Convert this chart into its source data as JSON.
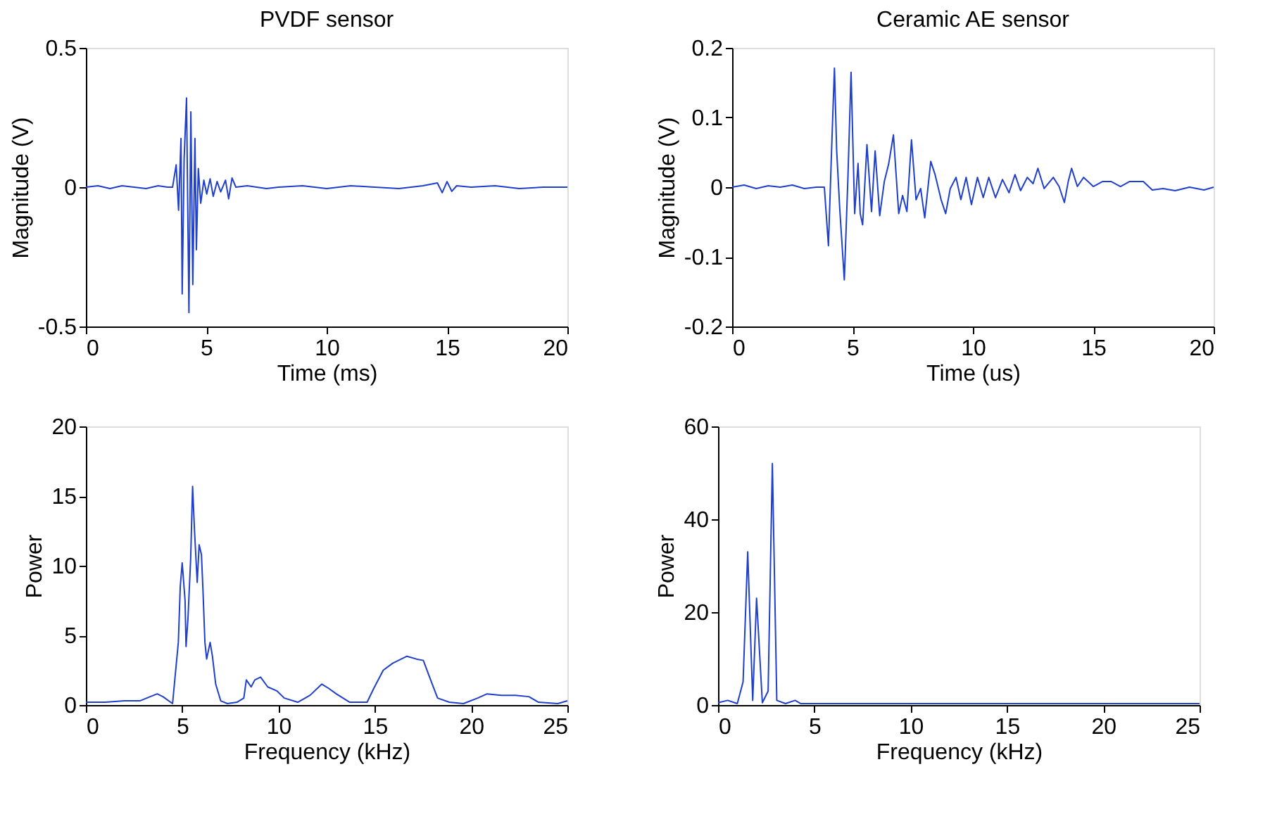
{
  "chart_data": [
    {
      "type": "line",
      "title": "PVDF sensor",
      "xlabel": "Time (ms)",
      "ylabel": "Magnitude (V)",
      "xlim": [
        0,
        20
      ],
      "ylim": [
        -0.5,
        0.5
      ],
      "xticks": [
        0,
        5,
        10,
        15,
        20
      ],
      "yticks": [
        -0.5,
        0,
        0.5
      ],
      "grid": false,
      "series": [
        {
          "color": "#1f3fcc",
          "x": [
            0,
            0.5,
            1,
            1.5,
            2,
            2.5,
            3,
            3.4,
            3.6,
            3.75,
            3.85,
            3.95,
            4.0,
            4.08,
            4.18,
            4.28,
            4.36,
            4.44,
            4.53,
            4.59,
            4.67,
            4.77,
            4.9,
            5.02,
            5.16,
            5.29,
            5.45,
            5.6,
            5.8,
            5.93,
            6.07,
            6.23,
            6.7,
            7.5,
            8,
            9,
            10,
            11,
            12,
            13,
            14,
            14.6,
            14.8,
            15,
            15.2,
            15.4,
            16,
            17,
            18,
            19,
            20
          ],
          "values": [
            0,
            0.005,
            -0.005,
            0.005,
            0,
            -0.005,
            0.005,
            0,
            0,
            0.08,
            -0.083,
            0.175,
            -0.383,
            0.1,
            0.32,
            -0.45,
            0.27,
            -0.35,
            0.175,
            -0.225,
            0.067,
            -0.058,
            0.025,
            -0.025,
            0.03,
            -0.033,
            0.02,
            -0.017,
            0.025,
            -0.042,
            0.033,
            0,
            0.005,
            -0.005,
            0,
            0.005,
            -0.005,
            0.005,
            0,
            -0.005,
            0.005,
            0.015,
            -0.02,
            0.02,
            -0.015,
            0.005,
            0,
            0.005,
            -0.005,
            0,
            0
          ]
        }
      ]
    },
    {
      "type": "line",
      "title": "Ceramic AE sensor",
      "xlabel": "Time (us)",
      "ylabel": "Magnitude (V)",
      "xlim": [
        0,
        20
      ],
      "ylim": [
        -0.2,
        0.2
      ],
      "xticks": [
        0,
        5,
        10,
        15,
        20
      ],
      "yticks": [
        -0.2,
        -0.1,
        0,
        0.1,
        0.2
      ],
      "grid": false,
      "series": [
        {
          "color": "#1f3fcc",
          "x": [
            0,
            0.5,
            1,
            1.5,
            2,
            2.5,
            3,
            3.5,
            3.83,
            4.0,
            4.15,
            4.25,
            4.34,
            4.47,
            4.66,
            4.81,
            4.94,
            5.09,
            5.23,
            5.32,
            5.42,
            5.6,
            5.79,
            5.94,
            6.13,
            6.32,
            6.5,
            6.7,
            6.92,
            7.08,
            7.26,
            7.45,
            7.64,
            7.83,
            8.0,
            8.25,
            8.43,
            8.68,
            8.87,
            9.06,
            9.3,
            9.5,
            9.72,
            9.94,
            10.19,
            10.43,
            10.66,
            10.94,
            11.23,
            11.5,
            11.75,
            11.98,
            12.26,
            12.5,
            12.7,
            12.96,
            13.34,
            13.58,
            13.8,
            13.96,
            14.1,
            14.34,
            14.6,
            15.0,
            15.38,
            15.75,
            16.13,
            16.5,
            17.08,
            17.45,
            17.9,
            18.4,
            19.0,
            19.6,
            20
          ],
          "values": [
            0,
            0.003,
            -0.002,
            0.002,
            0,
            0.003,
            -0.002,
            0,
            0,
            -0.084,
            0.073,
            0.171,
            0.054,
            -0.031,
            -0.133,
            0.014,
            0.165,
            -0.038,
            0.034,
            -0.038,
            -0.054,
            0.061,
            -0.035,
            0.052,
            -0.041,
            0.008,
            0.033,
            0.075,
            -0.038,
            -0.012,
            -0.035,
            0.068,
            -0.018,
            -0.002,
            -0.044,
            0.037,
            0.018,
            -0.018,
            -0.038,
            -0.002,
            0.014,
            -0.018,
            0.014,
            -0.025,
            0.014,
            -0.015,
            0.014,
            -0.015,
            0.011,
            -0.008,
            0.018,
            -0.005,
            0.014,
            0.005,
            0.027,
            -0.002,
            0.014,
            0.001,
            -0.022,
            0.008,
            0.027,
            0.001,
            0.014,
            0.001,
            0.008,
            0.008,
            0.001,
            0.008,
            0.008,
            -0.004,
            -0.002,
            -0.005,
            0,
            -0.004,
            0
          ]
        }
      ]
    },
    {
      "type": "line",
      "xlabel": "Frequency (kHz)",
      "ylabel": "Power",
      "xlim": [
        0,
        25
      ],
      "ylim": [
        0,
        20
      ],
      "xticks": [
        0,
        5,
        10,
        15,
        20,
        25
      ],
      "yticks": [
        0,
        5,
        10,
        15,
        20
      ],
      "grid": false,
      "series": [
        {
          "color": "#1f3fcc",
          "x": [
            0,
            1,
            2,
            2.8,
            3.7,
            4.0,
            4.5,
            4.8,
            4.9,
            5.0,
            5.15,
            5.2,
            5.3,
            5.44,
            5.54,
            5.64,
            5.78,
            5.88,
            6.0,
            6.08,
            6.18,
            6.27,
            6.45,
            6.57,
            6.74,
            7.0,
            7.35,
            7.84,
            8.2,
            8.33,
            8.58,
            8.77,
            9.07,
            9.44,
            9.93,
            10.3,
            11.0,
            11.64,
            12.25,
            12.6,
            13.0,
            13.7,
            14.6,
            14.95,
            15.44,
            15.93,
            16.67,
            17.16,
            17.52,
            17.9,
            18.26,
            18.87,
            19.6,
            20.34,
            20.83,
            21.57,
            22.3,
            23.0,
            23.5,
            24.5,
            25
          ],
          "values": [
            0.2,
            0.2,
            0.3,
            0.3,
            0.8,
            0.6,
            0.1,
            4.5,
            8.5,
            10.2,
            7.5,
            4.2,
            6.2,
            10.5,
            15.7,
            12.5,
            8.8,
            11.5,
            10.8,
            8.2,
            4.5,
            3.3,
            4.5,
            3.5,
            1.5,
            0.3,
            0.1,
            0.2,
            0.5,
            1.8,
            1.3,
            1.8,
            2.0,
            1.3,
            1.0,
            0.5,
            0.2,
            0.7,
            1.5,
            1.2,
            0.8,
            0.2,
            0.2,
            1.2,
            2.5,
            3.0,
            3.5,
            3.3,
            3.2,
            1.8,
            0.5,
            0.2,
            0.1,
            0.5,
            0.8,
            0.7,
            0.7,
            0.6,
            0.2,
            0.1,
            0.3
          ]
        }
      ]
    },
    {
      "type": "line",
      "xlabel": "Frequency (kHz)",
      "ylabel": "Power",
      "xlim": [
        0,
        25
      ],
      "ylim": [
        0,
        60
      ],
      "xticks": [
        0,
        5,
        10,
        15,
        20,
        25
      ],
      "yticks": [
        0,
        20,
        40,
        60
      ],
      "grid": false,
      "series": [
        {
          "color": "#1f3fcc",
          "x": [
            0,
            0.5,
            1.0,
            1.3,
            1.54,
            1.8,
            2.0,
            2.3,
            2.6,
            2.82,
            3.05,
            3.5,
            4.0,
            4.3,
            5,
            10,
            15,
            20,
            25
          ],
          "values": [
            0.5,
            1,
            0.3,
            5,
            33,
            1,
            23,
            0.5,
            3,
            52,
            1,
            0.3,
            1,
            0.3,
            0.3,
            0.3,
            0.3,
            0.3,
            0.3
          ]
        }
      ]
    }
  ]
}
